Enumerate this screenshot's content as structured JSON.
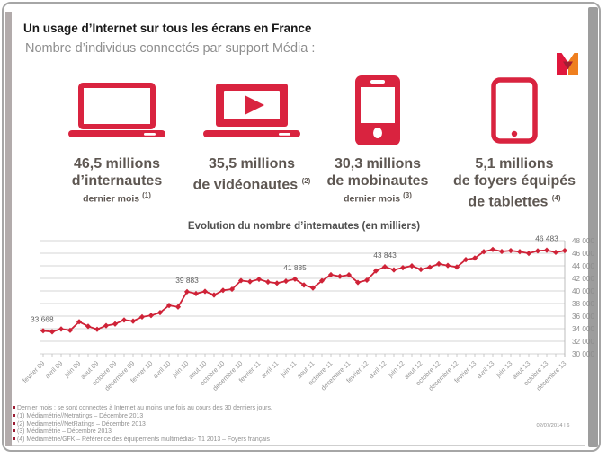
{
  "header": {
    "title": "Un usage d’Internet sur tous les écrans en France",
    "subtitle": "Nombre d’individus connectés par support Média :"
  },
  "logo": {
    "name": "Médiamétrie",
    "letter": "M",
    "red": "#e0173c",
    "orange": "#ef7f1f",
    "dark_red": "#a21d33"
  },
  "colors": {
    "accent": "#d9233f",
    "line": "#cf2237",
    "stats_text": "#5e5752",
    "gray_text": "#8e8e8e"
  },
  "stats": [
    {
      "icon": "laptop-icon",
      "value": "46,5 millions",
      "label": "d’internautes",
      "note": "dernier mois",
      "note_sup": "(1)"
    },
    {
      "icon": "video-laptop-icon",
      "value": "35,5 millions",
      "label": "de vidéonautes",
      "label_sup": "(2)"
    },
    {
      "icon": "mobile-icon",
      "value": "30,3 millions",
      "label": "de mobinautes",
      "note": "dernier mois",
      "note_sup": "(3)"
    },
    {
      "icon": "tablet-icon",
      "value": "5,1 millions",
      "label": "de foyers équipés",
      "line3": "de tablettes",
      "line3_sup": "(4)"
    }
  ],
  "chart_data": {
    "type": "line",
    "title": "Evolution du nombre d’internautes (en milliers)",
    "ylabel": "",
    "xlabel": "",
    "ylim": [
      30000,
      48000
    ],
    "y_step": 2000,
    "grid": true,
    "legend": false,
    "line_color": "#cf2237",
    "y_tick_labels": [
      "48 000",
      "46 000",
      "44 000",
      "42 000",
      "40 000",
      "38 000",
      "36 000",
      "34 000",
      "32 000",
      "30 000"
    ],
    "x_tick_labels": [
      "fevrier 09",
      "avril 09",
      "juin 09",
      "aout 09",
      "octobre 09",
      "decembre 09",
      "fevrier 10",
      "avril 10",
      "juin 10",
      "aout 10",
      "octobre 10",
      "decembre 10",
      "fevrier 11",
      "avril 11",
      "juin 11",
      "aout 11",
      "octobre 11",
      "decembre 11",
      "fevrier 12",
      "avril 12",
      "juin 12",
      "aout 12",
      "octobre 12",
      "decembre 12",
      "fevrier 13",
      "avril 13",
      "juin 13",
      "aout 13",
      "octobre 13",
      "decembre 13"
    ],
    "x_range": "fevrier 2009 - decembre 2013 (mensuel, 59 points)",
    "values": [
      33668,
      33520,
      33950,
      33740,
      35100,
      34380,
      33900,
      34480,
      34750,
      35380,
      35200,
      35870,
      36100,
      36560,
      37700,
      37460,
      39883,
      39580,
      39930,
      39360,
      40100,
      40280,
      41650,
      41480,
      41860,
      41430,
      41240,
      41560,
      41885,
      40950,
      40480,
      41620,
      42580,
      42320,
      42550,
      41350,
      41720,
      43200,
      43843,
      43350,
      43700,
      43980,
      43420,
      43780,
      44300,
      44050,
      43800,
      44980,
      45230,
      46250,
      46600,
      46280,
      46420,
      46250,
      45980,
      46380,
      46483,
      46150,
      46420
    ],
    "point_labels": [
      {
        "at": 0,
        "text": "33 668"
      },
      {
        "at": 16,
        "text": "39 883"
      },
      {
        "at": 28,
        "text": "41 885"
      },
      {
        "at": 38,
        "text": "43 843"
      },
      {
        "at": 56,
        "text": "46 483"
      }
    ]
  },
  "footer": {
    "notes": [
      {
        "text": "Dernier mois : se sont connectés à Internet au moins une fois au cours des 30 derniers jours."
      },
      {
        "text": "(1) Médiamétrie//Netratings – Décembre 2013"
      },
      {
        "text": "(2) Mediametrie//NetRatings – Décembre 2013"
      },
      {
        "text": "(3) Médiamétrie – Décembre 2013"
      },
      {
        "text": "(4) Médiamétrie/GFK – Référence des équipements multimédias- T1 2013 – Foyers français"
      }
    ],
    "page_info": "02/07/2014   |   6"
  }
}
